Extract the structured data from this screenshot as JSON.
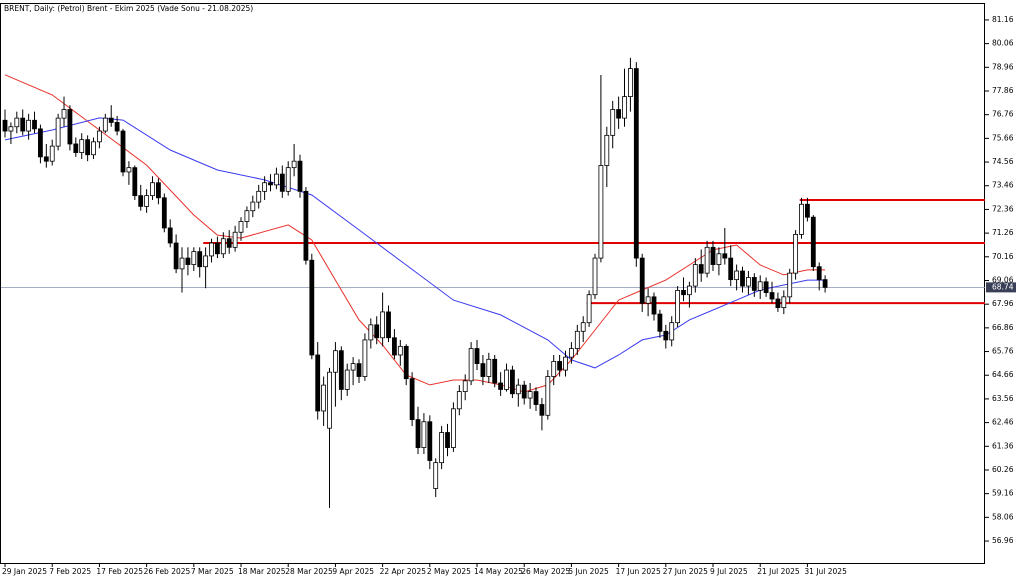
{
  "chart_data": {
    "type": "candlestick",
    "title": "BRENT, Daily:  (Petrol) Brent - Ekim 2025 (Vade Sonu - 21.08.2025)",
    "up_color": "#ffffff",
    "down_color": "#000000",
    "candles": [
      [
        76.5,
        77.0,
        75.7,
        76.0
      ],
      [
        76.0,
        76.4,
        75.4,
        76.2
      ],
      [
        76.2,
        76.9,
        75.9,
        76.6
      ],
      [
        76.6,
        77.0,
        75.8,
        76.0
      ],
      [
        76.0,
        76.8,
        75.6,
        76.5
      ],
      [
        76.5,
        76.9,
        75.9,
        76.1
      ],
      [
        76.1,
        76.3,
        74.5,
        74.8
      ],
      [
        74.8,
        75.4,
        74.3,
        74.6
      ],
      [
        74.6,
        75.6,
        74.4,
        75.3
      ],
      [
        75.3,
        76.8,
        75.1,
        76.6
      ],
      [
        76.6,
        77.6,
        76.2,
        77.0
      ],
      [
        77.0,
        77.2,
        75.1,
        75.4
      ],
      [
        75.4,
        75.7,
        74.8,
        75.0
      ],
      [
        75.0,
        75.9,
        74.7,
        75.6
      ],
      [
        75.6,
        75.8,
        74.6,
        74.9
      ],
      [
        74.9,
        75.7,
        74.7,
        75.5
      ],
      [
        75.5,
        76.2,
        75.2,
        76.0
      ],
      [
        76.0,
        76.8,
        75.9,
        76.6
      ],
      [
        76.6,
        77.2,
        76.2,
        76.4
      ],
      [
        76.4,
        76.7,
        75.8,
        76.0
      ],
      [
        76.0,
        76.1,
        73.9,
        74.1
      ],
      [
        74.1,
        74.6,
        73.5,
        74.3
      ],
      [
        74.3,
        74.4,
        72.8,
        73.0
      ],
      [
        73.0,
        73.5,
        72.3,
        72.5
      ],
      [
        72.5,
        73.3,
        72.2,
        73.0
      ],
      [
        73.0,
        73.9,
        72.8,
        73.6
      ],
      [
        73.6,
        73.8,
        72.6,
        72.9
      ],
      [
        72.9,
        73.1,
        71.3,
        71.5
      ],
      [
        71.5,
        71.9,
        70.6,
        70.8
      ],
      [
        70.8,
        71.2,
        69.4,
        69.6
      ],
      [
        69.6,
        70.6,
        68.5,
        70.1
      ],
      [
        70.1,
        70.6,
        69.3,
        69.8
      ],
      [
        69.8,
        70.6,
        69.5,
        70.4
      ],
      [
        70.4,
        70.6,
        69.2,
        69.7
      ],
      [
        69.7,
        70.6,
        68.7,
        70.2
      ],
      [
        70.2,
        71.0,
        69.9,
        70.8
      ],
      [
        70.8,
        71.1,
        70.1,
        70.3
      ],
      [
        70.3,
        71.3,
        70.1,
        71.0
      ],
      [
        71.0,
        71.4,
        70.3,
        70.6
      ],
      [
        70.6,
        71.6,
        70.4,
        71.3
      ],
      [
        71.3,
        72.0,
        70.9,
        71.8
      ],
      [
        71.8,
        72.5,
        71.5,
        72.3
      ],
      [
        72.3,
        73.0,
        72.0,
        72.7
      ],
      [
        72.7,
        73.5,
        72.4,
        73.2
      ],
      [
        73.2,
        73.9,
        72.8,
        73.6
      ],
      [
        73.6,
        74.0,
        73.2,
        73.5
      ],
      [
        73.5,
        74.3,
        73.3,
        74.0
      ],
      [
        74.0,
        74.4,
        72.9,
        73.2
      ],
      [
        73.2,
        74.6,
        73.0,
        74.3
      ],
      [
        74.3,
        75.4,
        73.9,
        74.6
      ],
      [
        74.6,
        74.9,
        72.9,
        73.2
      ],
      [
        73.2,
        73.4,
        69.8,
        70.0
      ],
      [
        70.0,
        70.3,
        65.4,
        65.6
      ],
      [
        65.6,
        66.2,
        62.6,
        63.0
      ],
      [
        63.0,
        64.6,
        62.3,
        64.2
      ],
      [
        62.2,
        65.0,
        58.5,
        64.8
      ],
      [
        64.8,
        66.2,
        63.2,
        65.8
      ],
      [
        65.8,
        66.0,
        63.5,
        64.0
      ],
      [
        64.0,
        65.2,
        63.7,
        64.9
      ],
      [
        64.9,
        65.5,
        64.2,
        65.2
      ],
      [
        65.2,
        65.4,
        64.3,
        64.6
      ],
      [
        64.6,
        66.6,
        64.4,
        66.3
      ],
      [
        66.3,
        67.3,
        65.9,
        67.0
      ],
      [
        67.0,
        67.4,
        66.1,
        66.4
      ],
      [
        66.4,
        68.5,
        66.0,
        67.6
      ],
      [
        67.6,
        67.9,
        66.2,
        66.4
      ],
      [
        66.4,
        66.8,
        65.4,
        65.6
      ],
      [
        65.6,
        66.3,
        65.1,
        66.0
      ],
      [
        66.0,
        66.1,
        64.2,
        64.5
      ],
      [
        64.5,
        64.8,
        62.3,
        62.6
      ],
      [
        62.6,
        63.2,
        61.0,
        61.3
      ],
      [
        61.3,
        62.9,
        61.0,
        62.5
      ],
      [
        62.5,
        62.8,
        60.3,
        60.7
      ],
      [
        59.4,
        60.8,
        59.0,
        60.6
      ],
      [
        60.6,
        62.3,
        60.3,
        62.0
      ],
      [
        62.0,
        62.4,
        60.9,
        61.3
      ],
      [
        61.3,
        63.4,
        61.1,
        63.1
      ],
      [
        63.1,
        64.2,
        62.8,
        63.9
      ],
      [
        63.9,
        64.7,
        63.5,
        64.4
      ],
      [
        64.4,
        66.2,
        64.2,
        65.9
      ],
      [
        65.9,
        66.3,
        64.9,
        65.2
      ],
      [
        65.2,
        65.6,
        64.2,
        64.6
      ],
      [
        64.6,
        65.7,
        64.3,
        65.4
      ],
      [
        65.4,
        65.6,
        64.1,
        64.3
      ],
      [
        64.3,
        64.8,
        63.7,
        64.0
      ],
      [
        64.0,
        65.2,
        63.9,
        64.9
      ],
      [
        64.9,
        65.1,
        63.6,
        63.8
      ],
      [
        63.8,
        64.5,
        63.2,
        64.2
      ],
      [
        64.2,
        64.4,
        63.3,
        63.6
      ],
      [
        63.6,
        64.3,
        63.1,
        63.9
      ],
      [
        63.9,
        64.1,
        63.0,
        63.3
      ],
      [
        63.3,
        63.6,
        62.1,
        62.8
      ],
      [
        62.8,
        64.9,
        62.6,
        64.6
      ],
      [
        64.6,
        65.6,
        64.2,
        65.3
      ],
      [
        65.3,
        65.6,
        64.6,
        64.9
      ],
      [
        64.9,
        65.8,
        64.6,
        65.5
      ],
      [
        65.5,
        66.2,
        65.2,
        65.9
      ],
      [
        65.9,
        67.0,
        65.6,
        66.7
      ],
      [
        66.7,
        67.4,
        66.2,
        67.1
      ],
      [
        67.1,
        68.6,
        66.9,
        68.4
      ],
      [
        68.4,
        70.3,
        68.2,
        70.1
      ],
      [
        70.1,
        78.6,
        69.9,
        74.4
      ],
      [
        74.4,
        76.2,
        73.4,
        75.8
      ],
      [
        75.8,
        77.4,
        75.2,
        77.0
      ],
      [
        77.0,
        77.6,
        76.1,
        76.6
      ],
      [
        76.6,
        78.9,
        76.2,
        77.6
      ],
      [
        77.6,
        79.4,
        76.9,
        78.9
      ],
      [
        78.9,
        79.2,
        69.7,
        70.1
      ],
      [
        70.1,
        70.3,
        67.6,
        68.0
      ],
      [
        68.0,
        68.7,
        67.4,
        68.3
      ],
      [
        68.3,
        68.5,
        67.2,
        67.5
      ],
      [
        67.5,
        67.7,
        66.4,
        66.7
      ],
      [
        66.7,
        67.0,
        65.9,
        66.3
      ],
      [
        66.3,
        67.4,
        66.0,
        67.1
      ],
      [
        67.1,
        68.8,
        66.9,
        68.6
      ],
      [
        68.6,
        69.2,
        68.1,
        68.4
      ],
      [
        68.4,
        69.0,
        67.8,
        68.8
      ],
      [
        68.8,
        70.1,
        68.5,
        69.8
      ],
      [
        69.8,
        70.5,
        69.0,
        69.4
      ],
      [
        69.4,
        70.9,
        69.2,
        70.6
      ],
      [
        70.6,
        70.9,
        69.5,
        69.8
      ],
      [
        69.8,
        70.6,
        69.3,
        70.3
      ],
      [
        70.3,
        71.5,
        69.8,
        70.1
      ],
      [
        70.1,
        70.7,
        68.8,
        69.1
      ],
      [
        69.1,
        69.8,
        68.6,
        69.5
      ],
      [
        69.5,
        69.7,
        68.5,
        68.8
      ],
      [
        68.8,
        69.5,
        68.4,
        69.2
      ],
      [
        69.2,
        69.4,
        68.3,
        68.6
      ],
      [
        68.6,
        69.3,
        68.2,
        69.0
      ],
      [
        69.0,
        69.2,
        68.3,
        68.5
      ],
      [
        68.5,
        69.0,
        68.0,
        68.2
      ],
      [
        68.2,
        68.5,
        67.6,
        67.8
      ],
      [
        67.8,
        68.6,
        67.5,
        68.3
      ],
      [
        68.3,
        69.6,
        68.0,
        69.4
      ],
      [
        69.4,
        71.4,
        69.1,
        71.2
      ],
      [
        71.2,
        72.9,
        71.0,
        72.6
      ],
      [
        72.6,
        72.9,
        71.8,
        72.0
      ],
      [
        72.0,
        72.1,
        69.5,
        69.7
      ],
      [
        69.7,
        69.9,
        68.6,
        69.1
      ],
      [
        69.1,
        69.3,
        68.5,
        68.74
      ]
    ],
    "series": [
      {
        "color": "#e8302a",
        "x": [
          0,
          8,
          16,
          24,
          32,
          36,
          40,
          48,
          52,
          56,
          60,
          64,
          68,
          72,
          76,
          80,
          84,
          88,
          92,
          96,
          100,
          104,
          108,
          112,
          116,
          120,
          124,
          128,
          132,
          136,
          139
        ],
        "values": [
          78.61,
          77.68,
          76.05,
          74.42,
          72.1,
          71.17,
          71.03,
          71.64,
          70.94,
          69.08,
          67.23,
          66.06,
          64.67,
          64.21,
          64.44,
          64.44,
          64.21,
          63.88,
          64.21,
          65.37,
          66.76,
          68.15,
          68.62,
          69.08,
          69.78,
          70.48,
          70.71,
          69.78,
          69.32,
          69.55,
          69.55
        ]
      },
      {
        "color": "#3a3af0",
        "x": [
          0,
          8,
          16,
          20,
          28,
          36,
          44,
          52,
          60,
          68,
          76,
          84,
          92,
          96,
          100,
          104,
          108,
          112,
          116,
          120,
          124,
          128,
          132,
          136,
          139
        ],
        "values": [
          75.59,
          76.05,
          76.61,
          76.51,
          75.12,
          74.19,
          73.73,
          73.03,
          71.41,
          69.78,
          68.15,
          67.46,
          66.3,
          65.37,
          65.0,
          65.6,
          66.3,
          66.53,
          67.23,
          67.69,
          68.15,
          68.62,
          68.85,
          69.08,
          69.08
        ]
      }
    ],
    "levels": [
      {
        "value": 72.8,
        "start": 134.7,
        "color": "#e00000"
      },
      {
        "value": 70.8,
        "start": 33.6,
        "color": "#e00000"
      },
      {
        "value": 68.01,
        "start": 98.6,
        "color": "#e00000"
      }
    ],
    "last_price": 68.74,
    "xlim": [
      -0.85,
      166.1
    ],
    "ylim": [
      55.94,
      81.9
    ],
    "yticks": [
      81.16,
      80.06,
      78.96,
      77.86,
      76.76,
      75.66,
      74.56,
      73.46,
      72.36,
      71.26,
      70.16,
      69.06,
      67.96,
      66.86,
      65.76,
      64.66,
      63.56,
      62.46,
      61.36,
      60.26,
      59.16,
      58.06,
      56.96
    ],
    "xticks": [
      {
        "value": 0,
        "label": "29 Jan 2025"
      },
      {
        "value": 8,
        "label": "7 Feb 2025"
      },
      {
        "value": 16,
        "label": "17 Feb 2025"
      },
      {
        "value": 24,
        "label": "26 Feb 2025"
      },
      {
        "value": 32,
        "label": "7 Mar 2025"
      },
      {
        "value": 40,
        "label": "18 Mar 2025"
      },
      {
        "value": 48,
        "label": "28 Mar 2025"
      },
      {
        "value": 56,
        "label": "9 Apr 2025"
      },
      {
        "value": 64,
        "label": "22 Apr 2025"
      },
      {
        "value": 72,
        "label": "2 May 2025"
      },
      {
        "value": 80,
        "label": "14 May 2025"
      },
      {
        "value": 88,
        "label": "26 May 2025"
      },
      {
        "value": 96,
        "label": "5 Jun 2025"
      },
      {
        "value": 104,
        "label": "17 Jun 2025"
      },
      {
        "value": 112,
        "label": "27 Jun 2025"
      },
      {
        "value": 120,
        "label": "9 Jul 2025"
      },
      {
        "value": 128,
        "label": "21 Jul 2025"
      },
      {
        "value": 136,
        "label": "31 Jul 2025"
      }
    ]
  }
}
